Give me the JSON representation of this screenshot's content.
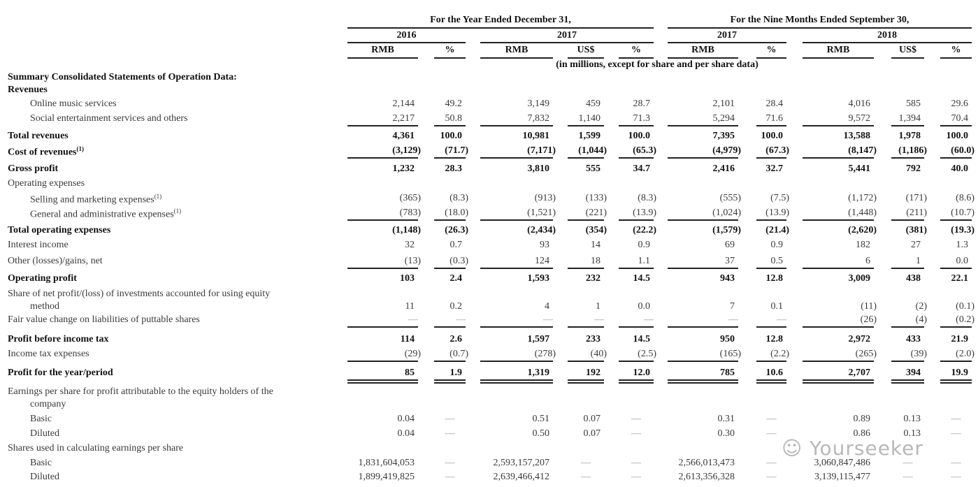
{
  "header": {
    "group_year": "For the Year Ended December 31,",
    "group_nine": "For the Nine Months Ended September 30,",
    "years": [
      "2016",
      "2017",
      "2017",
      "2018"
    ],
    "columns": [
      "RMB",
      "%",
      "RMB",
      "US$",
      "%",
      "RMB",
      "%",
      "RMB",
      "US$",
      "%"
    ],
    "units_note": "(in millions, except for share and per share data)"
  },
  "rows": [
    {
      "label": "Summary Consolidated Statements of Operation Data:",
      "bold": true,
      "values": []
    },
    {
      "label": "Revenues",
      "bold": true,
      "values": []
    },
    {
      "label": "Online music services",
      "indent": true,
      "values": [
        "2,144",
        "49.2",
        "3,149",
        "459",
        "28.7",
        "2,101",
        "28.4",
        "4,016",
        "585",
        "29.6"
      ]
    },
    {
      "label": "Social entertainment services and others",
      "indent": true,
      "rule": "single",
      "values": [
        "2,217",
        "50.8",
        "7,832",
        "1,140",
        "71.3",
        "5,294",
        "71.6",
        "9,572",
        "1,394",
        "70.4"
      ]
    },
    {
      "label": "Total revenues",
      "bold": true,
      "values": [
        "4,361",
        "100.0",
        "10,981",
        "1,599",
        "100.0",
        "7,395",
        "100.0",
        "13,588",
        "1,978",
        "100.0"
      ]
    },
    {
      "label": "Cost of revenues",
      "note": "(1)",
      "bold": true,
      "rule": "single",
      "values": [
        "(3,129)",
        "(71.7)",
        "(7,171)",
        "(1,044)",
        "(65.3)",
        "(4,979)",
        "(67.3)",
        "(8,147)",
        "(1,186)",
        "(60.0)"
      ]
    },
    {
      "label": "Gross profit",
      "bold": true,
      "values": [
        "1,232",
        "28.3",
        "3,810",
        "555",
        "34.7",
        "2,416",
        "32.7",
        "5,441",
        "792",
        "40.0"
      ]
    },
    {
      "label": "Operating expenses",
      "values": []
    },
    {
      "label": "Selling and marketing expenses",
      "note": "(1)",
      "indent": true,
      "values": [
        "(365)",
        "(8.3)",
        "(913)",
        "(133)",
        "(8.3)",
        "(555)",
        "(7.5)",
        "(1,172)",
        "(171)",
        "(8.6)"
      ]
    },
    {
      "label": "General and administrative expenses",
      "note": "(1)",
      "indent": true,
      "rule": "single",
      "values": [
        "(783)",
        "(18.0)",
        "(1,521)",
        "(221)",
        "(13.9)",
        "(1,024)",
        "(13.9)",
        "(1,448)",
        "(211)",
        "(10.7)"
      ]
    },
    {
      "label": "Total operating expenses",
      "bold": true,
      "values": [
        "(1,148)",
        "(26.3)",
        "(2,434)",
        "(354)",
        "(22.2)",
        "(1,579)",
        "(21.4)",
        "(2,620)",
        "(381)",
        "(19.3)"
      ]
    },
    {
      "label": "Interest income",
      "values": [
        "32",
        "0.7",
        "93",
        "14",
        "0.9",
        "69",
        "0.9",
        "182",
        "27",
        "1.3"
      ]
    },
    {
      "label": "Other (losses)/gains, net",
      "rule": "single",
      "values": [
        "(13)",
        "(0.3)",
        "124",
        "18",
        "1.1",
        "37",
        "0.5",
        "6",
        "1",
        "0.0"
      ]
    },
    {
      "label": "Operating profit",
      "bold": true,
      "values": [
        "103",
        "2.4",
        "1,593",
        "232",
        "14.5",
        "943",
        "12.8",
        "3,009",
        "438",
        "22.1"
      ]
    },
    {
      "label": "Share of net profit/(loss) of investments accounted for using equity",
      "label2": "method",
      "values": [
        "11",
        "0.2",
        "4",
        "1",
        "0.0",
        "7",
        "0.1",
        "(11)",
        "(2)",
        "(0.1)"
      ]
    },
    {
      "label": "Fair value change on liabilities of puttable shares",
      "rule": "single",
      "values": [
        "—",
        "—",
        "—",
        "—",
        "—",
        "—",
        "—",
        "(26)",
        "(4)",
        "(0.2)"
      ]
    },
    {
      "label": "Profit before income tax",
      "bold": true,
      "values": [
        "114",
        "2.6",
        "1,597",
        "233",
        "14.5",
        "950",
        "12.8",
        "2,972",
        "433",
        "21.9"
      ]
    },
    {
      "label": "Income tax expenses",
      "rule": "single",
      "values": [
        "(29)",
        "(0.7)",
        "(278)",
        "(40)",
        "(2.5)",
        "(165)",
        "(2.2)",
        "(265)",
        "(39)",
        "(2.0)"
      ]
    },
    {
      "label": "Profit for the year/period",
      "bold": true,
      "rule": "double",
      "values": [
        "85",
        "1.9",
        "1,319",
        "192",
        "12.0",
        "785",
        "10.6",
        "2,707",
        "394",
        "19.9"
      ]
    },
    {
      "label": "Earnings per share for profit attributable to the equity holders of the",
      "label2": "company",
      "values": []
    },
    {
      "label": "Basic",
      "indent": true,
      "values": [
        "0.04",
        "—",
        "0.51",
        "0.07",
        "—",
        "0.31",
        "—",
        "0.89",
        "0.13",
        "—"
      ]
    },
    {
      "label": "Diluted",
      "indent": true,
      "values": [
        "0.04",
        "—",
        "0.50",
        "0.07",
        "—",
        "0.30",
        "—",
        "0.86",
        "0.13",
        "—"
      ]
    },
    {
      "label": "Shares used in calculating earnings per share",
      "values": []
    },
    {
      "label": "Basic",
      "indent": true,
      "values": [
        "1,831,604,053",
        "—",
        "2,593,157,207",
        "—",
        "—",
        "2,566,013,473",
        "—",
        "3,060,847,486",
        "—",
        "—"
      ]
    },
    {
      "label": "Diluted",
      "indent": true,
      "values": [
        "1,899,419,825",
        "—",
        "2,639,466,412",
        "—",
        "—",
        "2,613,356,328",
        "—",
        "3,139,115,477",
        "—",
        "—"
      ]
    }
  ],
  "watermark": "Yourseeker"
}
